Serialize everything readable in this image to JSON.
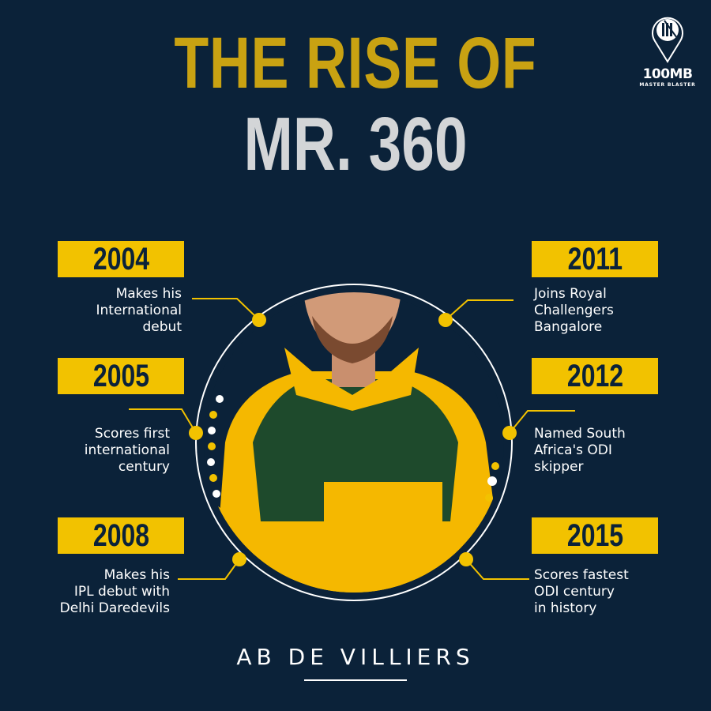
{
  "title": {
    "line1": "THE RISE OF",
    "line2": "MR. 360"
  },
  "logo": {
    "name": "100MB",
    "tagline": "MASTER BLASTER",
    "icon": "cricket-stumps-pin-icon"
  },
  "colors": {
    "background": "#0b2239",
    "accent": "#f2c200",
    "title_gold": "#c9a212",
    "title_gray": "#d3d5d7"
  },
  "subject": {
    "name": "AB DE VILLIERS"
  },
  "milestones": [
    {
      "year": "2004",
      "lines": [
        "Makes his",
        "International",
        "debut"
      ]
    },
    {
      "year": "2005",
      "lines": [
        "Scores first",
        "international",
        "century"
      ]
    },
    {
      "year": "2008",
      "lines": [
        "Makes his",
        "IPL debut with",
        "Delhi Daredevils"
      ]
    },
    {
      "year": "2011",
      "lines": [
        "Joins Royal",
        "Challengers",
        "Bangalore"
      ]
    },
    {
      "year": "2012",
      "lines": [
        "Named South",
        "Africa's ODI",
        "skipper"
      ]
    },
    {
      "year": "2015",
      "lines": [
        "Scores fastest",
        "ODI century",
        "in history"
      ]
    }
  ]
}
